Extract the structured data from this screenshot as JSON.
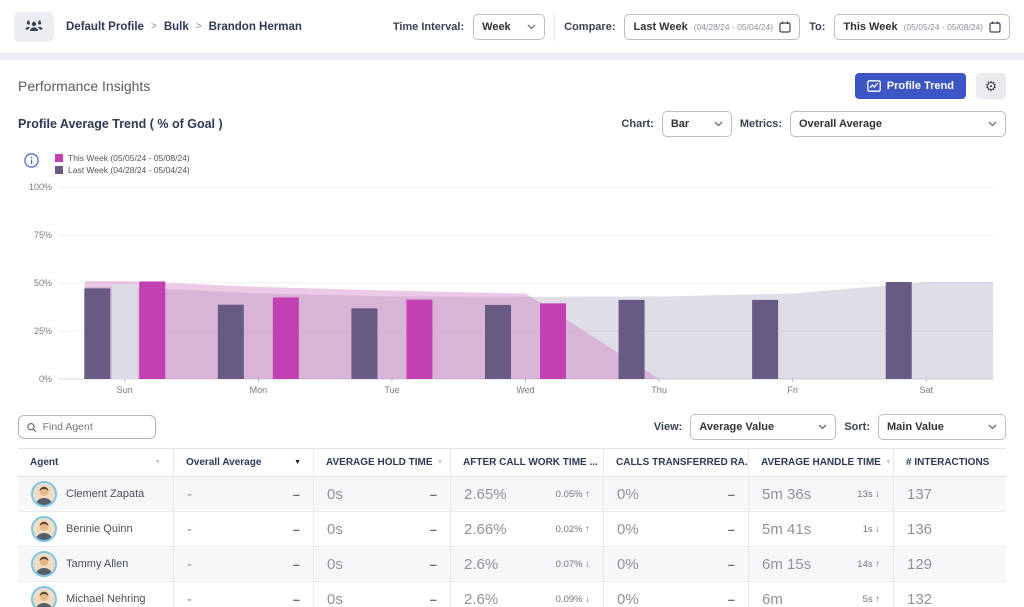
{
  "topbar": {
    "breadcrumb": {
      "items": [
        "Default Profile",
        "Bulk",
        "Brandon Herman"
      ],
      "separator": ">"
    },
    "time_interval": {
      "label": "Time Interval:",
      "value": "Week"
    },
    "compare": {
      "label": "Compare:",
      "value": "Last Week",
      "range": "(04/28/24 - 05/04/24)"
    },
    "to": {
      "label": "To:",
      "value": "This Week",
      "range": "(05/05/24 - 05/08/24)"
    }
  },
  "header": {
    "title": "Performance Insights",
    "profile_trend_label": "Profile Trend"
  },
  "controls": {
    "chart_label": "Chart:",
    "chart_value": "Bar",
    "metrics_label": "Metrics:",
    "metrics_value": "Overall Average"
  },
  "chart_data": {
    "type": "bar",
    "title": "Profile Average Trend ( % of Goal )",
    "categories": [
      "Sun",
      "Mon",
      "Tue",
      "Wed",
      "Thu",
      "Fri",
      "Sat"
    ],
    "series": [
      {
        "name": "This Week (05/05/24 - 05/08/24)",
        "color": "#c33fb4",
        "values": [
          50.8,
          42.5,
          41.3,
          39.4,
          null,
          null,
          null
        ]
      },
      {
        "name": "Last Week (04/28/24 - 05/04/24)",
        "color": "#675a83",
        "values": [
          47.2,
          38.7,
          36.8,
          38.6,
          41.2,
          41.2,
          50.5
        ]
      }
    ],
    "ghost_bar": {
      "category": "Sun",
      "value": 49.3,
      "color": "#dedbe8"
    },
    "areas": [
      {
        "name": "last-week-trend-area",
        "color": "rgba(150,142,172,0.30)",
        "values": [
          48,
          44.5,
          43,
          42.8,
          43,
          44.5,
          50.5
        ],
        "extend_right": true
      },
      {
        "name": "this-week-trend-area",
        "color": "rgba(205,112,190,0.38)",
        "values": [
          51,
          48,
          46,
          44.5,
          0,
          null,
          null
        ],
        "extend_right": false
      }
    ],
    "y_ticks": [
      0,
      25,
      50,
      75,
      100
    ],
    "ylim": [
      0,
      100
    ],
    "grid": true,
    "legend_position": "top-left"
  },
  "table_controls": {
    "search_placeholder": "Find Agent",
    "view_label": "View:",
    "view_value": "Average Value",
    "sort_label": "Sort:",
    "sort_value": "Main Value"
  },
  "table": {
    "columns": [
      {
        "label": "Agent",
        "sort": "inactive"
      },
      {
        "label": "Overall Average",
        "sort": "active"
      },
      {
        "label": "AVERAGE HOLD TIME",
        "sort": "inactive"
      },
      {
        "label": "AFTER CALL WORK TIME ...",
        "sort": "inactive"
      },
      {
        "label": "CALLS TRANSFERRED RA...",
        "sort": "inactive"
      },
      {
        "label": "AVERAGE HANDLE TIME",
        "sort": "inactive"
      },
      {
        "label": "# INTERACTIONS",
        "sort": "none"
      }
    ],
    "rows": [
      {
        "agent": "Clement Zapata",
        "cells": [
          {
            "value": "-",
            "delta": "–"
          },
          {
            "value": "0s",
            "delta": "–"
          },
          {
            "value": "2.65%",
            "delta": "0.05%",
            "dir": "up"
          },
          {
            "value": "0%",
            "delta": "–"
          },
          {
            "value": "5m 36s",
            "delta": "13s",
            "dir": "down"
          },
          {
            "value": "137"
          }
        ]
      },
      {
        "agent": "Bennie Quinn",
        "cells": [
          {
            "value": "-",
            "delta": "–"
          },
          {
            "value": "0s",
            "delta": "–"
          },
          {
            "value": "2.66%",
            "delta": "0.02%",
            "dir": "up"
          },
          {
            "value": "0%",
            "delta": "–"
          },
          {
            "value": "5m 41s",
            "delta": "1s",
            "dir": "down"
          },
          {
            "value": "136"
          }
        ]
      },
      {
        "agent": "Tammy Allen",
        "cells": [
          {
            "value": "-",
            "delta": "–"
          },
          {
            "value": "0s",
            "delta": "–"
          },
          {
            "value": "2.6%",
            "delta": "0.07%",
            "dir": "down"
          },
          {
            "value": "0%",
            "delta": "–"
          },
          {
            "value": "6m 15s",
            "delta": "14s",
            "dir": "up"
          },
          {
            "value": "129"
          }
        ]
      },
      {
        "agent": "Michael Nehring",
        "cells": [
          {
            "value": "-",
            "delta": "–"
          },
          {
            "value": "0s",
            "delta": "–"
          },
          {
            "value": "2.6%",
            "delta": "0.09%",
            "dir": "down"
          },
          {
            "value": "0%",
            "delta": "–"
          },
          {
            "value": "6m",
            "delta": "5s",
            "dir": "up"
          },
          {
            "value": "132"
          }
        ]
      }
    ]
  },
  "icons": {
    "arrow_up": "↑",
    "arrow_down": "↓",
    "sort_triangle": "▼",
    "gear": "⚙"
  }
}
